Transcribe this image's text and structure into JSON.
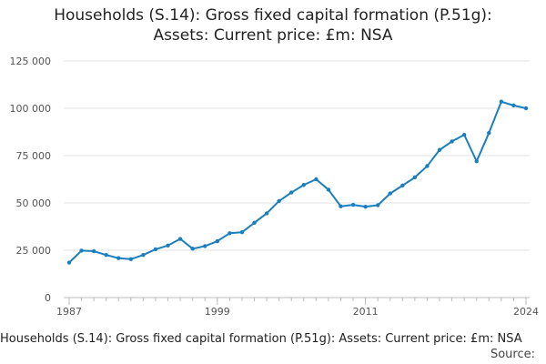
{
  "chart_data": {
    "type": "line",
    "title_lines": [
      "Households (S.14): Gross fixed capital formation (P.51g):",
      "Assets: Current price: £m: NSA"
    ],
    "xlabel": "",
    "ylabel": "",
    "xlim": [
      1987,
      2024
    ],
    "ylim": [
      0,
      125000
    ],
    "y_ticks": [
      0,
      25000,
      50000,
      75000,
      100000,
      125000
    ],
    "y_tick_labels": [
      "0",
      "25 000",
      "50 000",
      "75 000",
      "100 000",
      "125 000"
    ],
    "x_ticks": [
      1987,
      1999,
      2011,
      2024
    ],
    "x_tick_labels": [
      "1987",
      "1999",
      "2011",
      "2024"
    ],
    "grid": "horizontal",
    "colors": {
      "line": "#1a7fbf",
      "grid": "#e3e3e3",
      "axis": "#bbbbbb"
    },
    "series": [
      {
        "x": [
          1987,
          1988,
          1989,
          1990,
          1991,
          1992,
          1993,
          1994,
          1995,
          1996,
          1997,
          1998,
          1999,
          2000,
          2001,
          2002,
          2003,
          2004,
          2005,
          2006,
          2007,
          2008,
          2009,
          2010,
          2011,
          2012,
          2013,
          2014,
          2015,
          2016,
          2017,
          2018,
          2019,
          2020,
          2021,
          2022,
          2023,
          2024
        ],
        "values": [
          18500,
          24800,
          24500,
          22500,
          20800,
          20300,
          22500,
          25500,
          27500,
          31000,
          25800,
          27200,
          29800,
          34000,
          34500,
          39500,
          44500,
          51000,
          55500,
          59500,
          62500,
          57000,
          48200,
          49000,
          48000,
          48800,
          55000,
          59200,
          63500,
          69500,
          78000,
          82500,
          86000,
          72000,
          87000,
          103500,
          101500,
          100000
        ]
      }
    ]
  },
  "footer": {
    "caption": "Households (S.14): Gross fixed capital formation (P.51g): Assets: Current price: £m: NSA",
    "source": "Source:"
  }
}
